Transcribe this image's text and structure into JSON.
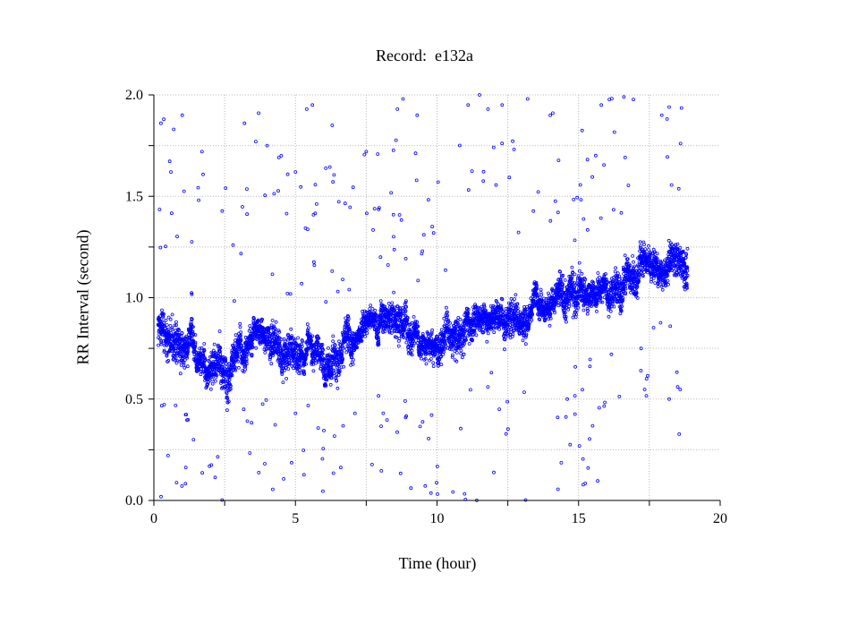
{
  "chart_data": {
    "type": "scatter",
    "title": "Record:  e132a",
    "xlabel": "Time (hour)",
    "ylabel": "RR Interval (second)",
    "xlim": [
      0,
      20
    ],
    "ylim": [
      0.0,
      2.0
    ],
    "x_ticks": [
      "0",
      "5",
      "10",
      "15",
      "20"
    ],
    "y_ticks": [
      "0.0",
      "0.5",
      "1.0",
      "1.5",
      "2.0"
    ],
    "grid": true,
    "legend": "none",
    "marker": "open-circle",
    "color": "#0000ff",
    "x_range_of_data": [
      0.15,
      18.85
    ],
    "trend": [
      {
        "t": 0.2,
        "rr": 0.86
      },
      {
        "t": 1.0,
        "rr": 0.74
      },
      {
        "t": 2.0,
        "rr": 0.68
      },
      {
        "t": 2.6,
        "rr": 0.6
      },
      {
        "t": 3.5,
        "rr": 0.85
      },
      {
        "t": 4.5,
        "rr": 0.75
      },
      {
        "t": 5.5,
        "rr": 0.73
      },
      {
        "t": 6.5,
        "rr": 0.7
      },
      {
        "t": 7.5,
        "rr": 0.86
      },
      {
        "t": 8.5,
        "rr": 0.9
      },
      {
        "t": 9.5,
        "rr": 0.8
      },
      {
        "t": 10.5,
        "rr": 0.8
      },
      {
        "t": 11.5,
        "rr": 0.95
      },
      {
        "t": 12.5,
        "rr": 0.88
      },
      {
        "t": 13.5,
        "rr": 0.96
      },
      {
        "t": 14.5,
        "rr": 0.98
      },
      {
        "t": 15.5,
        "rr": 1.02
      },
      {
        "t": 16.5,
        "rr": 1.05
      },
      {
        "t": 17.2,
        "rr": 1.2
      },
      {
        "t": 18.0,
        "rr": 1.13
      },
      {
        "t": 18.8,
        "rr": 1.18
      }
    ],
    "outliers": [
      {
        "t": 0.25,
        "rr": 1.86
      },
      {
        "t": 0.35,
        "rr": 1.88
      },
      {
        "t": 0.6,
        "rr": 1.62
      },
      {
        "t": 0.7,
        "rr": 1.83
      },
      {
        "t": 1.0,
        "rr": 1.9
      },
      {
        "t": 1.7,
        "rr": 1.72
      },
      {
        "t": 3.2,
        "rr": 1.86
      },
      {
        "t": 3.6,
        "rr": 1.77
      },
      {
        "t": 3.7,
        "rr": 1.91
      },
      {
        "t": 4.0,
        "rr": 1.75
      },
      {
        "t": 4.5,
        "rr": 1.7
      },
      {
        "t": 5.0,
        "rr": 1.62
      },
      {
        "t": 5.4,
        "rr": 1.93
      },
      {
        "t": 5.6,
        "rr": 1.95
      },
      {
        "t": 6.3,
        "rr": 1.85
      },
      {
        "t": 7.5,
        "rr": 1.72
      },
      {
        "t": 8.6,
        "rr": 1.93
      },
      {
        "t": 8.8,
        "rr": 1.98
      },
      {
        "t": 9.3,
        "rr": 1.9
      },
      {
        "t": 11.1,
        "rr": 1.95
      },
      {
        "t": 11.5,
        "rr": 2.0
      },
      {
        "t": 11.8,
        "rr": 1.93
      },
      {
        "t": 12.3,
        "rr": 1.95
      },
      {
        "t": 13.2,
        "rr": 1.98
      },
      {
        "t": 14.0,
        "rr": 1.9
      },
      {
        "t": 15.8,
        "rr": 1.95
      },
      {
        "t": 16.6,
        "rr": 1.99
      },
      {
        "t": 18.2,
        "rr": 1.94
      },
      {
        "t": 18.6,
        "rr": 1.76
      },
      {
        "t": 1.4,
        "rr": 0.3
      },
      {
        "t": 5.0,
        "rr": 0.43
      },
      {
        "t": 7.1,
        "rr": 0.43
      },
      {
        "t": 8.1,
        "rr": 0.43
      },
      {
        "t": 12.2,
        "rr": 0.45
      },
      {
        "t": 14.6,
        "rr": 0.5
      },
      {
        "t": 17.4,
        "rr": 0.6
      },
      {
        "t": 18.2,
        "rr": 0.5
      },
      {
        "t": 18.5,
        "rr": 0.56
      }
    ]
  }
}
